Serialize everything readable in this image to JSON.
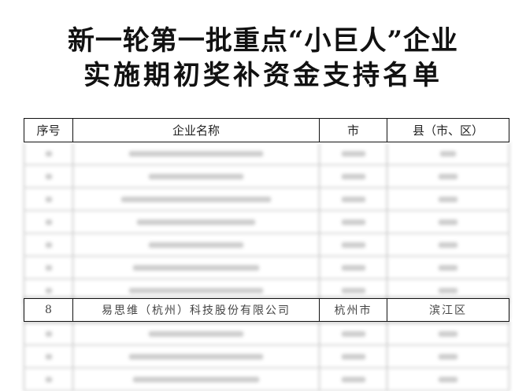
{
  "title": {
    "line1": "新一轮第一批重点“小巨人”企业",
    "line2": "实施期初奖补资金支持名单"
  },
  "table": {
    "headers": [
      "序号",
      "企业名称",
      "市",
      "县（市、区）"
    ],
    "highlighted_row": {
      "index": "8",
      "company": "易思维（杭州）科技股份有限公司",
      "city": "杭州市",
      "district": "滨江区"
    }
  }
}
